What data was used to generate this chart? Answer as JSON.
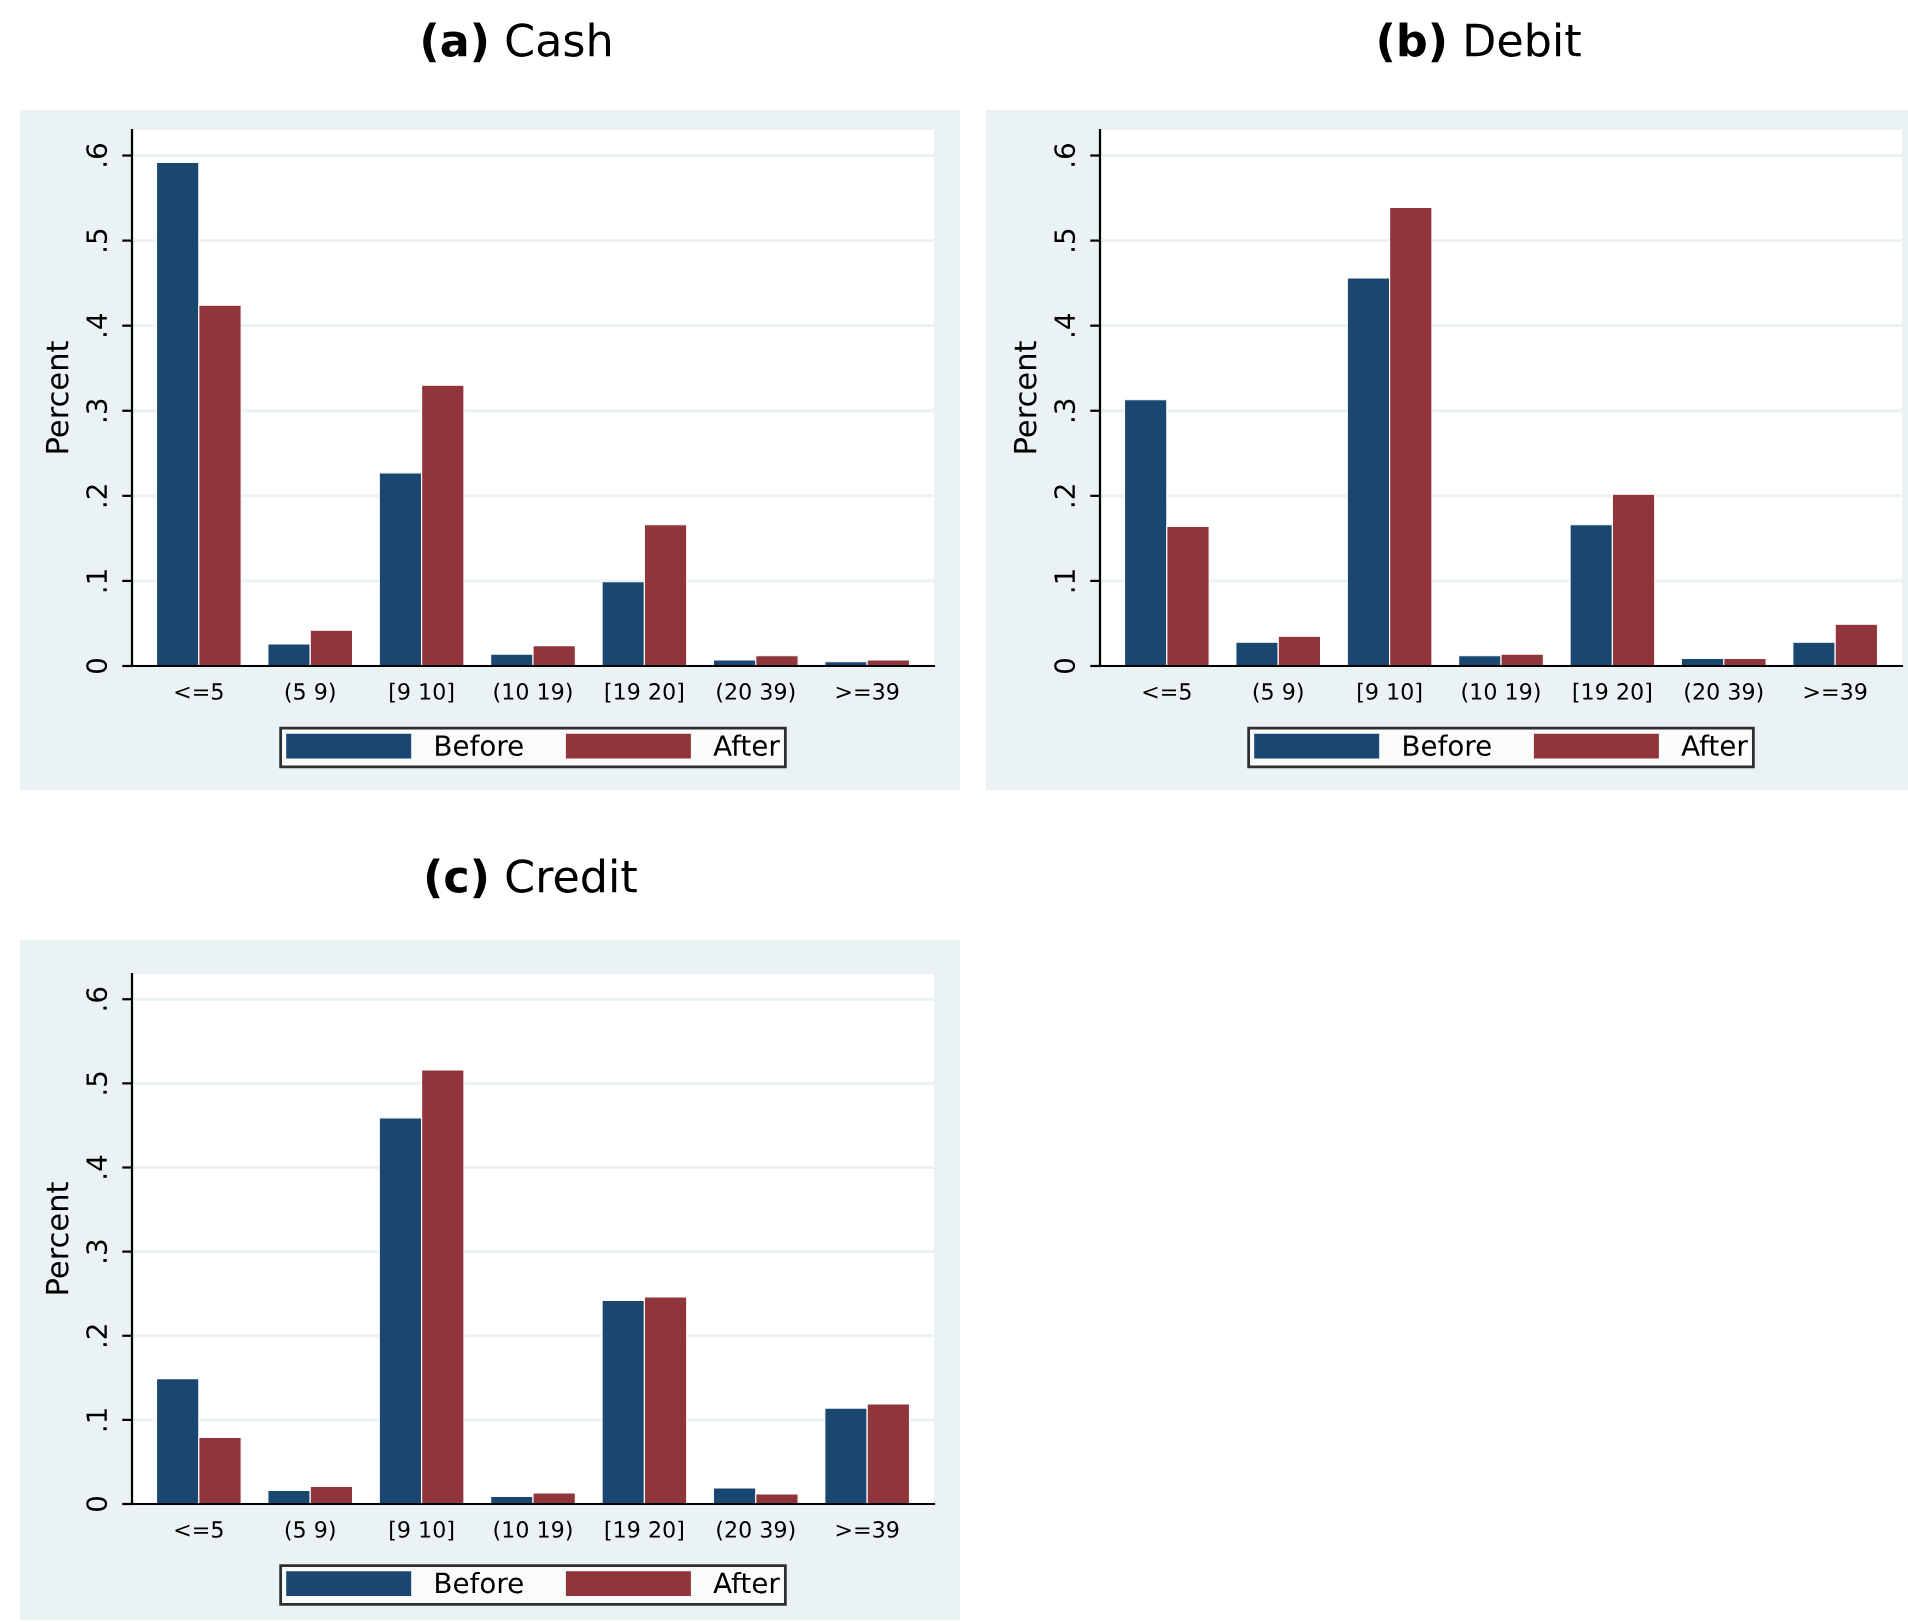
{
  "chart_data": [
    {
      "type": "bar",
      "title": "(a) Cash",
      "ylabel": "Percent",
      "categories": [
        "<=5",
        "(5 9)",
        "[9 10]",
        "(10 19)",
        "[19 20]",
        "(20 39)",
        ">=39"
      ],
      "series": [
        {
          "name": "Before",
          "color": "#1a476f",
          "values": [
            0.592,
            0.026,
            0.227,
            0.014,
            0.099,
            0.007,
            0.005
          ]
        },
        {
          "name": "After",
          "color": "#90353b",
          "values": [
            0.424,
            0.042,
            0.33,
            0.024,
            0.166,
            0.012,
            0.007
          ]
        }
      ],
      "ylim": [
        0,
        0.63
      ],
      "yticks": [
        0,
        {
          "value": 0.1,
          "label": ".1"
        },
        {
          "value": 0.2,
          "label": ".2"
        },
        {
          "value": 0.3,
          "label": ".3"
        },
        {
          "value": 0.4,
          "label": ".4"
        },
        {
          "value": 0.5,
          "label": ".5"
        },
        {
          "value": 0.6,
          "label": ".6"
        }
      ],
      "grid": "y",
      "legend": "bottom"
    },
    {
      "type": "bar",
      "title": "(b) Debit",
      "ylabel": "Percent",
      "categories": [
        "<=5",
        "(5 9)",
        "[9 10]",
        "(10 19)",
        "[19 20]",
        "(20 39)",
        ">=39"
      ],
      "series": [
        {
          "name": "Before",
          "color": "#1a476f",
          "values": [
            0.313,
            0.028,
            0.456,
            0.012,
            0.166,
            0.009,
            0.028
          ]
        },
        {
          "name": "After",
          "color": "#90353b",
          "values": [
            0.164,
            0.035,
            0.539,
            0.014,
            0.202,
            0.009,
            0.049
          ]
        }
      ],
      "ylim": [
        0,
        0.63
      ],
      "yticks": [
        0,
        {
          "value": 0.1,
          "label": ".1"
        },
        {
          "value": 0.2,
          "label": ".2"
        },
        {
          "value": 0.3,
          "label": ".3"
        },
        {
          "value": 0.4,
          "label": ".4"
        },
        {
          "value": 0.5,
          "label": ".5"
        },
        {
          "value": 0.6,
          "label": ".6"
        }
      ],
      "grid": "y",
      "legend": "bottom"
    },
    {
      "type": "bar",
      "title": "(c) Credit",
      "ylabel": "Percent",
      "categories": [
        "<=5",
        "(5 9)",
        "[9 10]",
        "(10 19)",
        "[19 20]",
        "(20 39)",
        ">=39"
      ],
      "series": [
        {
          "name": "Before",
          "color": "#1a476f",
          "values": [
            0.149,
            0.016,
            0.459,
            0.009,
            0.242,
            0.019,
            0.114
          ]
        },
        {
          "name": "After",
          "color": "#90353b",
          "values": [
            0.079,
            0.021,
            0.516,
            0.013,
            0.246,
            0.012,
            0.119
          ]
        }
      ],
      "ylim": [
        0,
        0.63
      ],
      "yticks": [
        0,
        {
          "value": 0.1,
          "label": ".1"
        },
        {
          "value": 0.2,
          "label": ".2"
        },
        {
          "value": 0.3,
          "label": ".3"
        },
        {
          "value": 0.4,
          "label": ".4"
        },
        {
          "value": 0.5,
          "label": ".5"
        },
        {
          "value": 0.6,
          "label": ".6"
        }
      ],
      "grid": "y",
      "legend": "bottom"
    }
  ]
}
